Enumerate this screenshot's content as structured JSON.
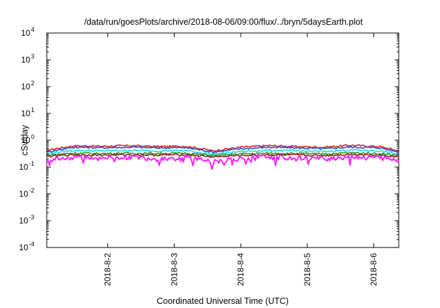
{
  "chart_data": {
    "type": "line",
    "title": "/data/run/goesPlots/archive/2018-08-06/09:00/flux/../bryn/5daysEarth.plot",
    "xlabel": "Coordinated Universal Time (UTC)",
    "ylabel": "cSv/day",
    "y_scale": "log",
    "ylim": [
      0.0001,
      10000
    ],
    "y_ticks": [
      {
        "value": 0.0001,
        "base": "10",
        "exp": "-4"
      },
      {
        "value": 0.001,
        "base": "10",
        "exp": "-3"
      },
      {
        "value": 0.01,
        "base": "10",
        "exp": "-2"
      },
      {
        "value": 0.1,
        "base": "10",
        "exp": "-1"
      },
      {
        "value": 1,
        "base": "10",
        "exp": "0"
      },
      {
        "value": 10,
        "base": "10",
        "exp": "1"
      },
      {
        "value": 100,
        "base": "10",
        "exp": "2"
      },
      {
        "value": 1000,
        "base": "10",
        "exp": "3"
      },
      {
        "value": 10000,
        "base": "10",
        "exp": "4"
      }
    ],
    "xlim": [
      "2018-08-01T02:00",
      "2018-08-06T09:00"
    ],
    "x_ticks": [
      {
        "value": "2018-08-02T00:00",
        "label": "2018-8-2"
      },
      {
        "value": "2018-08-03T00:00",
        "label": "2018-8-3"
      },
      {
        "value": "2018-08-04T00:00",
        "label": "2018-8-4"
      },
      {
        "value": "2018-08-05T00:00",
        "label": "2018-8-5"
      },
      {
        "value": "2018-08-06T00:00",
        "label": "2018-8-6"
      }
    ],
    "grid": false,
    "x": [
      "2018-08-01T02:00",
      "2018-08-01T12:00",
      "2018-08-01T22:00",
      "2018-08-02T08:00",
      "2018-08-02T18:00",
      "2018-08-03T04:00",
      "2018-08-03T14:00",
      "2018-08-04T00:00",
      "2018-08-04T10:00",
      "2018-08-04T20:00",
      "2018-08-05T06:00",
      "2018-08-05T16:00",
      "2018-08-06T02:00",
      "2018-08-06T09:00"
    ],
    "series": [
      {
        "color": "#d62020",
        "values": [
          0.42,
          0.62,
          0.6,
          0.63,
          0.58,
          0.6,
          0.4,
          0.55,
          0.63,
          0.58,
          0.55,
          0.65,
          0.58,
          0.4
        ]
      },
      {
        "color": "#2050e0",
        "values": [
          0.36,
          0.55,
          0.53,
          0.55,
          0.52,
          0.53,
          0.36,
          0.48,
          0.55,
          0.52,
          0.48,
          0.56,
          0.52,
          0.36
        ]
      },
      {
        "color": "#20d8e0",
        "values": [
          0.32,
          0.42,
          0.4,
          0.42,
          0.4,
          0.41,
          0.3,
          0.38,
          0.42,
          0.4,
          0.38,
          0.43,
          0.4,
          0.3
        ]
      },
      {
        "color": "#20a020",
        "values": [
          0.28,
          0.33,
          0.32,
          0.33,
          0.32,
          0.33,
          0.27,
          0.31,
          0.33,
          0.32,
          0.31,
          0.34,
          0.32,
          0.27
        ]
      },
      {
        "color": "#8b1a1a",
        "values": [
          0.25,
          0.29,
          0.28,
          0.29,
          0.28,
          0.29,
          0.24,
          0.27,
          0.29,
          0.28,
          0.27,
          0.3,
          0.28,
          0.24
        ]
      },
      {
        "color": "#ff20ff",
        "values": [
          0.18,
          0.24,
          0.22,
          0.24,
          0.2,
          0.23,
          0.16,
          0.21,
          0.24,
          0.22,
          0.2,
          0.25,
          0.22,
          0.17
        ]
      }
    ]
  }
}
